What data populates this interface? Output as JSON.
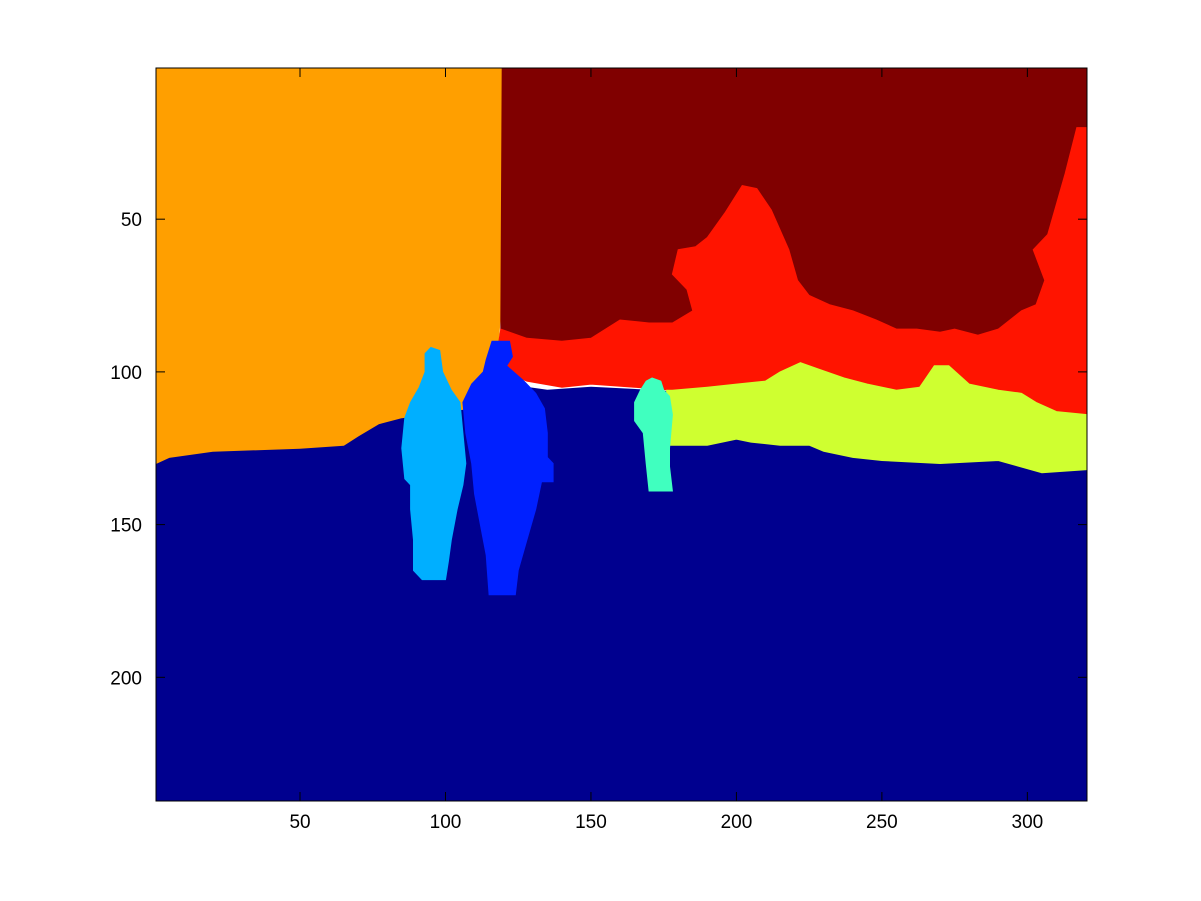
{
  "chart_data": {
    "type": "heatmap",
    "title": "",
    "xlabel": "",
    "ylabel": "",
    "xlim": [
      0.5,
      320.5
    ],
    "ylim": [
      0.5,
      240.5
    ],
    "y_reversed": true,
    "grid": false,
    "legend": "none",
    "x_ticks": [
      50,
      100,
      150,
      200,
      250,
      300
    ],
    "y_ticks": [
      50,
      100,
      150,
      200
    ],
    "x_tick_labels": [
      "50",
      "100",
      "150",
      "200",
      "250",
      "300"
    ],
    "y_tick_labels": [
      "50",
      "100",
      "150",
      "200"
    ],
    "regions": [
      {
        "id": "ground",
        "color": "#00008F",
        "polygon": [
          [
            0.5,
            130
          ],
          [
            5,
            128
          ],
          [
            20,
            126
          ],
          [
            50,
            125
          ],
          [
            65,
            124
          ],
          [
            70,
            121
          ],
          [
            77,
            117
          ],
          [
            85,
            115
          ],
          [
            100,
            113
          ],
          [
            108,
            112
          ],
          [
            115,
            110
          ],
          [
            120,
            104
          ],
          [
            135,
            106
          ],
          [
            150,
            105
          ],
          [
            170,
            106
          ],
          [
            185,
            107
          ],
          [
            200,
            115
          ],
          [
            205,
            123
          ],
          [
            215,
            124
          ],
          [
            225,
            124
          ],
          [
            230,
            126
          ],
          [
            240,
            128
          ],
          [
            250,
            129
          ],
          [
            270,
            130
          ],
          [
            290,
            129
          ],
          [
            305,
            133
          ],
          [
            320.5,
            132
          ],
          [
            320.5,
            240.5
          ],
          [
            0.5,
            240.5
          ]
        ]
      },
      {
        "id": "orange-area",
        "color": "#FF9F00",
        "polygon": [
          [
            0.5,
            0.5
          ],
          [
            119.5,
            0.5
          ],
          [
            119.5,
            40
          ],
          [
            119,
            80
          ],
          [
            118,
            92
          ],
          [
            115,
            104
          ],
          [
            108,
            112
          ],
          [
            100,
            113
          ],
          [
            85,
            115
          ],
          [
            77,
            117
          ],
          [
            70,
            121
          ],
          [
            65,
            124
          ],
          [
            50,
            125
          ],
          [
            20,
            126
          ],
          [
            5,
            128
          ],
          [
            0.5,
            130
          ]
        ]
      },
      {
        "id": "dark-red-area",
        "color": "#800000",
        "polygon": [
          [
            119.5,
            0.5
          ],
          [
            320.5,
            0.5
          ],
          [
            320.5,
            20
          ],
          [
            317,
            20
          ],
          [
            313,
            35
          ],
          [
            307,
            55
          ],
          [
            302,
            60
          ],
          [
            306,
            70
          ],
          [
            303,
            78
          ],
          [
            298,
            80
          ],
          [
            290,
            86
          ],
          [
            283,
            88
          ],
          [
            275,
            86
          ],
          [
            270,
            87
          ],
          [
            262,
            86
          ],
          [
            255,
            86
          ],
          [
            248,
            83
          ],
          [
            240,
            80
          ],
          [
            232,
            78
          ],
          [
            225,
            75
          ],
          [
            221,
            70
          ],
          [
            218,
            60
          ],
          [
            212,
            47
          ],
          [
            207,
            40
          ],
          [
            202,
            39
          ],
          [
            196,
            48
          ],
          [
            190,
            56
          ],
          [
            186,
            59
          ],
          [
            180,
            60
          ],
          [
            178,
            68
          ],
          [
            183,
            73
          ],
          [
            185,
            80
          ],
          [
            178,
            84
          ],
          [
            170,
            84
          ],
          [
            160,
            83
          ],
          [
            150,
            89
          ],
          [
            140,
            90
          ],
          [
            128,
            89
          ],
          [
            119,
            86
          ]
        ]
      },
      {
        "id": "red-area",
        "color": "#FF1400",
        "polygon": [
          [
            119,
            86
          ],
          [
            128,
            89
          ],
          [
            140,
            90
          ],
          [
            150,
            89
          ],
          [
            160,
            83
          ],
          [
            170,
            84
          ],
          [
            178,
            84
          ],
          [
            185,
            80
          ],
          [
            183,
            73
          ],
          [
            178,
            68
          ],
          [
            180,
            60
          ],
          [
            186,
            59
          ],
          [
            190,
            56
          ],
          [
            196,
            48
          ],
          [
            202,
            39
          ],
          [
            207,
            40
          ],
          [
            212,
            47
          ],
          [
            218,
            60
          ],
          [
            221,
            70
          ],
          [
            225,
            75
          ],
          [
            232,
            78
          ],
          [
            240,
            80
          ],
          [
            248,
            83
          ],
          [
            255,
            86
          ],
          [
            262,
            86
          ],
          [
            270,
            87
          ],
          [
            275,
            86
          ],
          [
            283,
            88
          ],
          [
            290,
            86
          ],
          [
            298,
            80
          ],
          [
            303,
            78
          ],
          [
            306,
            70
          ],
          [
            302,
            60
          ],
          [
            307,
            55
          ],
          [
            313,
            35
          ],
          [
            317,
            20
          ],
          [
            320.5,
            20
          ],
          [
            320.5,
            114
          ],
          [
            310,
            113
          ],
          [
            303,
            110
          ],
          [
            298,
            107
          ],
          [
            290,
            106
          ],
          [
            280,
            104
          ],
          [
            273,
            98
          ],
          [
            268,
            98
          ],
          [
            263,
            105
          ],
          [
            255,
            106
          ],
          [
            245,
            104
          ],
          [
            237,
            102
          ],
          [
            228,
            99
          ],
          [
            222,
            97
          ],
          [
            215,
            100
          ],
          [
            210,
            103
          ],
          [
            200,
            104
          ],
          [
            190,
            105
          ],
          [
            178,
            106
          ],
          [
            165,
            105
          ],
          [
            150,
            104
          ],
          [
            140,
            105
          ],
          [
            128,
            103
          ],
          [
            121,
            100
          ],
          [
            118,
            92
          ]
        ]
      },
      {
        "id": "yellow-green-area",
        "color": "#CFFF30",
        "polygon": [
          [
            176,
            106
          ],
          [
            178,
            106
          ],
          [
            190,
            105
          ],
          [
            200,
            104
          ],
          [
            210,
            103
          ],
          [
            215,
            100
          ],
          [
            222,
            97
          ],
          [
            228,
            99
          ],
          [
            237,
            102
          ],
          [
            245,
            104
          ],
          [
            255,
            106
          ],
          [
            263,
            105
          ],
          [
            268,
            98
          ],
          [
            273,
            98
          ],
          [
            280,
            104
          ],
          [
            290,
            106
          ],
          [
            298,
            107
          ],
          [
            303,
            110
          ],
          [
            310,
            113
          ],
          [
            320.5,
            114
          ],
          [
            320.5,
            132
          ],
          [
            305,
            133
          ],
          [
            290,
            129
          ],
          [
            270,
            130
          ],
          [
            250,
            129
          ],
          [
            240,
            128
          ],
          [
            230,
            126
          ],
          [
            225,
            124
          ],
          [
            215,
            124
          ],
          [
            205,
            123
          ],
          [
            200,
            122
          ],
          [
            190,
            124
          ],
          [
            180,
            124
          ],
          [
            176,
            124
          ]
        ]
      },
      {
        "id": "person-left",
        "color": "#00AFFF",
        "polygon": [
          [
            95,
            92
          ],
          [
            98,
            93
          ],
          [
            99,
            100
          ],
          [
            102,
            106
          ],
          [
            105,
            110
          ],
          [
            106,
            120
          ],
          [
            107,
            130
          ],
          [
            106,
            137
          ],
          [
            104,
            145
          ],
          [
            102,
            155
          ],
          [
            101,
            162
          ],
          [
            100,
            168
          ],
          [
            92,
            168
          ],
          [
            89,
            165
          ],
          [
            89,
            155
          ],
          [
            88,
            145
          ],
          [
            88,
            137
          ],
          [
            86,
            135
          ],
          [
            85,
            125
          ],
          [
            86,
            115
          ],
          [
            88,
            110
          ],
          [
            91,
            105
          ],
          [
            93,
            100
          ],
          [
            93,
            94
          ]
        ]
      },
      {
        "id": "person-center",
        "color": "#0020FF",
        "polygon": [
          [
            116,
            90
          ],
          [
            122,
            90
          ],
          [
            123,
            95
          ],
          [
            121,
            98
          ],
          [
            127,
            103
          ],
          [
            131,
            107
          ],
          [
            134,
            112
          ],
          [
            135,
            120
          ],
          [
            135,
            128
          ],
          [
            137,
            130
          ],
          [
            137,
            136
          ],
          [
            133,
            136
          ],
          [
            131,
            145
          ],
          [
            128,
            155
          ],
          [
            125,
            165
          ],
          [
            124,
            173
          ],
          [
            115,
            173
          ],
          [
            114,
            160
          ],
          [
            112,
            150
          ],
          [
            110,
            140
          ],
          [
            109,
            130
          ],
          [
            107,
            120
          ],
          [
            106,
            110
          ],
          [
            109,
            104
          ],
          [
            113,
            100
          ],
          [
            114,
            96
          ]
        ]
      },
      {
        "id": "person-right",
        "color": "#40FFBF",
        "polygon": [
          [
            171,
            102
          ],
          [
            174,
            103
          ],
          [
            175,
            106
          ],
          [
            177,
            108
          ],
          [
            178,
            114
          ],
          [
            177,
            125
          ],
          [
            177,
            131
          ],
          [
            178,
            139
          ],
          [
            170,
            139
          ],
          [
            169,
            130
          ],
          [
            168,
            120
          ],
          [
            165,
            116
          ],
          [
            165,
            110
          ],
          [
            167,
            106
          ],
          [
            169,
            103
          ]
        ]
      }
    ]
  }
}
